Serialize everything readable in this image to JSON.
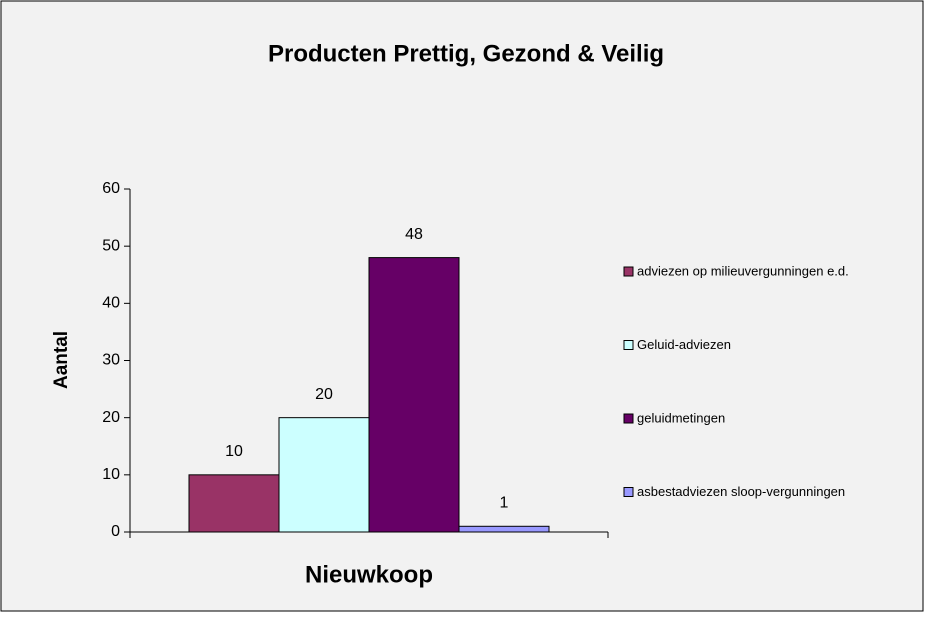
{
  "chart_data": {
    "type": "bar",
    "title": "Producten Prettig, Gezond & Veilig",
    "y_label": "Aantal",
    "categories": [
      "Nieuwkoop"
    ],
    "series": [
      {
        "name": "adviezen op milieuvergunningen e.d.",
        "color": "#993366",
        "values": [
          10
        ]
      },
      {
        "name": "Geluid-adviezen",
        "color": "#ccffff",
        "values": [
          20
        ]
      },
      {
        "name": "geluidmetingen",
        "color": "#660066",
        "values": [
          48
        ]
      },
      {
        "name": "asbestadviezen sloop-vergunningen",
        "color": "#9999ff",
        "values": [
          1
        ]
      }
    ],
    "ylim": [
      0,
      60
    ],
    "yticks": [
      0,
      10,
      20,
      30,
      40,
      50,
      60
    ],
    "grid": false,
    "legend": "right"
  }
}
